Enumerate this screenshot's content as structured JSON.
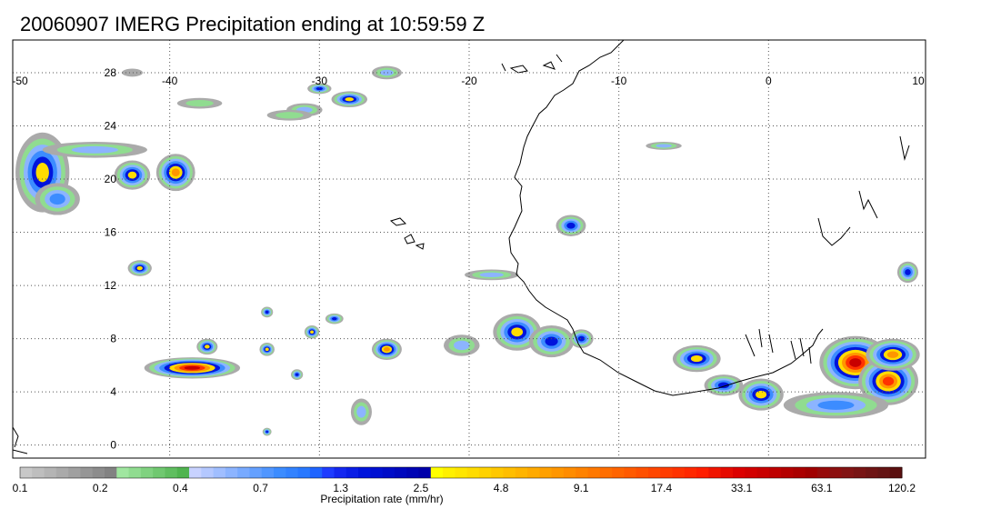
{
  "title": "20060907 IMERG Precipitation ending at 10:59:59 Z",
  "map": {
    "lon_labels": [
      "-50",
      "-40",
      "-30",
      "-20",
      "-10",
      "0",
      "10"
    ],
    "lon_values": [
      -50,
      -40,
      -30,
      -20,
      -10,
      0,
      10
    ],
    "lat_labels": [
      "28",
      "24",
      "20",
      "16",
      "12",
      "8",
      "4",
      "0"
    ],
    "lat_values": [
      28,
      24,
      20,
      16,
      12,
      8,
      4,
      0
    ],
    "lon_range": [
      -50,
      10
    ],
    "lat_range": [
      -0.5,
      29.5
    ],
    "grid": "dotted"
  },
  "colorbar": {
    "label": "Precipitation rate (mm/hr)",
    "tick_labels": [
      "0.1",
      "0.2",
      "0.4",
      "0.7",
      "1.3",
      "2.5",
      "4.8",
      "9.1",
      "17.4",
      "33.1",
      "63.1",
      "120.2"
    ],
    "colors": [
      "#c8c8c8",
      "#bebebe",
      "#b4b4b4",
      "#aaaaaa",
      "#a0a0a0",
      "#969696",
      "#8c8c8c",
      "#828282",
      "#a0e6a0",
      "#90dc90",
      "#80d280",
      "#70c870",
      "#60be60",
      "#50b450",
      "#c8d2ff",
      "#b4c8ff",
      "#a0beff",
      "#8cb4ff",
      "#78aaff",
      "#64a0ff",
      "#5096ff",
      "#3c8cff",
      "#3282ff",
      "#2878ff",
      "#1e64ff",
      "#1e3cff",
      "#1428f0",
      "#0a1ee6",
      "#0014dc",
      "#0010d2",
      "#000cc8",
      "#0008be",
      "#0004b4",
      "#0000aa",
      "#ffff00",
      "#fff000",
      "#ffe600",
      "#ffdc00",
      "#ffd200",
      "#ffc800",
      "#ffbe00",
      "#ffb400",
      "#ffaa00",
      "#ffa000",
      "#ff9600",
      "#ff8c00",
      "#ff8200",
      "#ff7800",
      "#ff6e00",
      "#ff6400",
      "#ff5a00",
      "#ff5000",
      "#ff4600",
      "#ff3c00",
      "#ff3200",
      "#ff2800",
      "#ff1e00",
      "#f01400",
      "#e60a00",
      "#dc0000",
      "#d20000",
      "#c80000",
      "#be0000",
      "#b40000",
      "#aa0000",
      "#a00000",
      "#960a0a",
      "#8c1010",
      "#821414",
      "#781414",
      "#6e1414",
      "#641414",
      "#5a1010"
    ]
  },
  "precip_cells": [
    {
      "lon": -48.5,
      "lat": 20.5,
      "rx": 1.8,
      "ry": 3.0,
      "peak": 4.8
    },
    {
      "lon": -39.6,
      "lat": 20.5,
      "rx": 1.3,
      "ry": 1.4,
      "peak": 9.1
    },
    {
      "lon": -42.5,
      "lat": 20.3,
      "rx": 1.2,
      "ry": 1.1,
      "peak": 4.8
    },
    {
      "lon": -45.0,
      "lat": 22.2,
      "rx": 3.5,
      "ry": 0.6,
      "peak": 0.7
    },
    {
      "lon": -47.5,
      "lat": 18.5,
      "rx": 1.5,
      "ry": 1.2,
      "peak": 1.3
    },
    {
      "lon": -42.0,
      "lat": 13.3,
      "rx": 0.8,
      "ry": 0.6,
      "peak": 4.8
    },
    {
      "lon": -38.5,
      "lat": 5.8,
      "rx": 3.2,
      "ry": 0.8,
      "peak": 63.1
    },
    {
      "lon": -37.5,
      "lat": 7.4,
      "rx": 0.7,
      "ry": 0.6,
      "peak": 4.8
    },
    {
      "lon": -33.5,
      "lat": 7.2,
      "rx": 0.5,
      "ry": 0.5,
      "peak": 4.8
    },
    {
      "lon": -30.5,
      "lat": 8.5,
      "rx": 0.5,
      "ry": 0.5,
      "peak": 4.8
    },
    {
      "lon": -25.5,
      "lat": 7.2,
      "rx": 1.0,
      "ry": 0.8,
      "peak": 9.1
    },
    {
      "lon": -29.0,
      "lat": 9.5,
      "rx": 0.6,
      "ry": 0.4,
      "peak": 2.5
    },
    {
      "lon": -31.5,
      "lat": 5.3,
      "rx": 0.4,
      "ry": 0.4,
      "peak": 2.5
    },
    {
      "lon": -33.5,
      "lat": 10.0,
      "rx": 0.4,
      "ry": 0.4,
      "peak": 2.5
    },
    {
      "lon": -28.0,
      "lat": 26.0,
      "rx": 1.2,
      "ry": 0.6,
      "peak": 4.8
    },
    {
      "lon": -25.5,
      "lat": 28.0,
      "rx": 1.0,
      "ry": 0.5,
      "peak": 0.7
    },
    {
      "lon": -31.0,
      "lat": 25.2,
      "rx": 1.2,
      "ry": 0.5,
      "peak": 0.7
    },
    {
      "lon": -30.0,
      "lat": 26.8,
      "rx": 0.8,
      "ry": 0.4,
      "peak": 2.5
    },
    {
      "lon": -38.0,
      "lat": 25.7,
      "rx": 1.5,
      "ry": 0.4,
      "peak": 0.4
    },
    {
      "lon": -32.0,
      "lat": 24.8,
      "rx": 1.5,
      "ry": 0.4,
      "peak": 0.4
    },
    {
      "lon": -42.5,
      "lat": 28.0,
      "rx": 0.7,
      "ry": 0.3,
      "peak": 0.2
    },
    {
      "lon": -16.8,
      "lat": 8.5,
      "rx": 1.6,
      "ry": 1.4,
      "peak": 4.8
    },
    {
      "lon": -14.5,
      "lat": 7.8,
      "rx": 1.5,
      "ry": 1.2,
      "peak": 2.5
    },
    {
      "lon": -12.5,
      "lat": 8.0,
      "rx": 0.8,
      "ry": 0.7,
      "peak": 2.5
    },
    {
      "lon": -13.2,
      "lat": 16.5,
      "rx": 1.0,
      "ry": 0.8,
      "peak": 2.5
    },
    {
      "lon": -20.5,
      "lat": 7.5,
      "rx": 1.2,
      "ry": 0.8,
      "peak": 0.7
    },
    {
      "lon": -18.5,
      "lat": 12.8,
      "rx": 1.8,
      "ry": 0.4,
      "peak": 0.7
    },
    {
      "lon": -4.8,
      "lat": 6.5,
      "rx": 1.6,
      "ry": 1.0,
      "peak": 4.8
    },
    {
      "lon": -0.5,
      "lat": 3.8,
      "rx": 1.5,
      "ry": 1.2,
      "peak": 4.8
    },
    {
      "lon": -3.0,
      "lat": 4.5,
      "rx": 1.3,
      "ry": 0.8,
      "peak": 2.5
    },
    {
      "lon": 5.8,
      "lat": 6.2,
      "rx": 2.4,
      "ry": 2.0,
      "peak": 33.1
    },
    {
      "lon": 8.0,
      "lat": 4.8,
      "rx": 2.0,
      "ry": 1.8,
      "peak": 17.4
    },
    {
      "lon": 8.3,
      "lat": 6.8,
      "rx": 1.8,
      "ry": 1.2,
      "peak": 9.1
    },
    {
      "lon": 4.5,
      "lat": 3.0,
      "rx": 3.5,
      "ry": 1.0,
      "peak": 1.3
    },
    {
      "lon": 9.3,
      "lat": 13.0,
      "rx": 0.7,
      "ry": 0.8,
      "peak": 2.5
    },
    {
      "lon": -27.2,
      "lat": 2.5,
      "rx": 0.7,
      "ry": 1.0,
      "peak": 0.7
    },
    {
      "lon": -33.5,
      "lat": 1.0,
      "rx": 0.3,
      "ry": 0.3,
      "peak": 2.5
    },
    {
      "lon": -7.0,
      "lat": 22.5,
      "rx": 1.2,
      "ry": 0.3,
      "peak": 0.7
    }
  ]
}
